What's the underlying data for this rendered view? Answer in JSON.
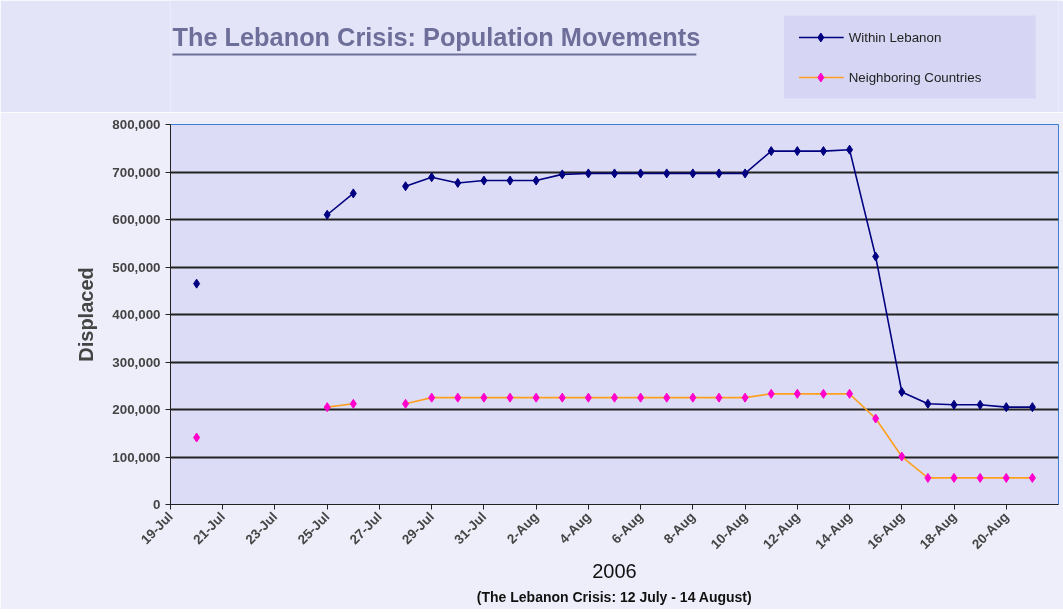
{
  "chart_data": {
    "type": "line",
    "title": "The Lebanon Crisis: Population Movements",
    "xlabel": "2006",
    "ylabel": "Displaced",
    "annotations": [
      "(The Lebanon Crisis: 12 July - 14 August)"
    ],
    "x": [
      "2006-07-20",
      "2006-07-21",
      "2006-07-22",
      "2006-07-23",
      "2006-07-24",
      "2006-07-25",
      "2006-07-26",
      "2006-07-27",
      "2006-07-28",
      "2006-07-29",
      "2006-07-30",
      "2006-07-31",
      "2006-08-01",
      "2006-08-02",
      "2006-08-03",
      "2006-08-04",
      "2006-08-05",
      "2006-08-06",
      "2006-08-07",
      "2006-08-08",
      "2006-08-09",
      "2006-08-10",
      "2006-08-11",
      "2006-08-12",
      "2006-08-13",
      "2006-08-14",
      "2006-08-15",
      "2006-08-16",
      "2006-08-17",
      "2006-08-18",
      "2006-08-19",
      "2006-08-20",
      "2006-08-21"
    ],
    "series": [
      {
        "name": "Within Lebanon",
        "color": "#000080",
        "values": [
          465000,
          null,
          null,
          null,
          null,
          610000,
          655000,
          null,
          670000,
          689000,
          677000,
          682000,
          682000,
          682000,
          695000,
          697000,
          697000,
          697000,
          697000,
          697000,
          697000,
          697000,
          744000,
          744000,
          744000,
          747000,
          522000,
          237000,
          212000,
          210000,
          210000,
          205000,
          205000
        ]
      },
      {
        "name": "Neighboring Countries",
        "color": "#ffa020",
        "colors": [
          "#ff00cc",
          "#ff00cc",
          "#ff00cc",
          "#ff00cc",
          "#ff00cc",
          "#ff00cc",
          "#ff00cc",
          "#ff00cc",
          "#ff00cc",
          "#ff00cc",
          "#ff00cc",
          "#ff00cc",
          "#ff00cc",
          "#ff00cc",
          "#ff00cc",
          "#ff00cc",
          "#ff00cc",
          "#ff00cc",
          "#ff00cc",
          "#ff00cc",
          "#ff00cc",
          "#ff00cc",
          "#ff00cc",
          "#ff00cc",
          "#ff00cc",
          "#ff00cc",
          "#ff00cc",
          "#ff00cc",
          "#ff00cc",
          "#ff00cc",
          "#ff00cc",
          "#ff00cc",
          "#ff00cc"
        ],
        "values": [
          141000,
          null,
          null,
          null,
          null,
          205000,
          212000,
          null,
          212000,
          225000,
          225000,
          225000,
          225000,
          225000,
          225000,
          225000,
          225000,
          225000,
          225000,
          225000,
          225000,
          225000,
          233000,
          233000,
          233000,
          233000,
          181000,
          101000,
          56000,
          56000,
          56000,
          56000,
          56000
        ]
      }
    ],
    "xlim": [
      "2006-07-19",
      "2006-08-22"
    ],
    "xticks": [
      {
        "value": "2006-07-19",
        "label": "19-Jul"
      },
      {
        "value": "2006-07-21",
        "label": "21-Jul"
      },
      {
        "value": "2006-07-23",
        "label": "23-Jul"
      },
      {
        "value": "2006-07-25",
        "label": "25-Jul"
      },
      {
        "value": "2006-07-27",
        "label": "27-Jul"
      },
      {
        "value": "2006-07-29",
        "label": "29-Jul"
      },
      {
        "value": "2006-07-31",
        "label": "31-Jul"
      },
      {
        "value": "2006-08-02",
        "label": "2-Aug"
      },
      {
        "value": "2006-08-04",
        "label": "4-Aug"
      },
      {
        "value": "2006-08-06",
        "label": "6-Aug"
      },
      {
        "value": "2006-08-08",
        "label": "8-Aug"
      },
      {
        "value": "2006-08-10",
        "label": "10-Aug"
      },
      {
        "value": "2006-08-12",
        "label": "12-Aug"
      },
      {
        "value": "2006-08-14",
        "label": "14-Aug"
      },
      {
        "value": "2006-08-16",
        "label": "16-Aug"
      },
      {
        "value": "2006-08-18",
        "label": "18-Aug"
      },
      {
        "value": "2006-08-20",
        "label": "20-Aug"
      }
    ],
    "ylim": [
      0,
      800000
    ],
    "yticks": [
      0,
      {
        "value": 100000,
        "label": "100,000"
      },
      {
        "value": 200000,
        "label": "200,000"
      },
      {
        "value": 300000,
        "label": "300,000"
      },
      {
        "value": 400000,
        "label": "400,000"
      },
      {
        "value": 500000,
        "label": "500,000"
      },
      {
        "value": 600000,
        "label": "600,000"
      },
      {
        "value": 700000,
        "label": "700,000"
      },
      {
        "value": 800000,
        "label": "800,000"
      }
    ],
    "grid": "y",
    "legend": "top right",
    "marker": "diamond",
    "line_style": "solid"
  }
}
